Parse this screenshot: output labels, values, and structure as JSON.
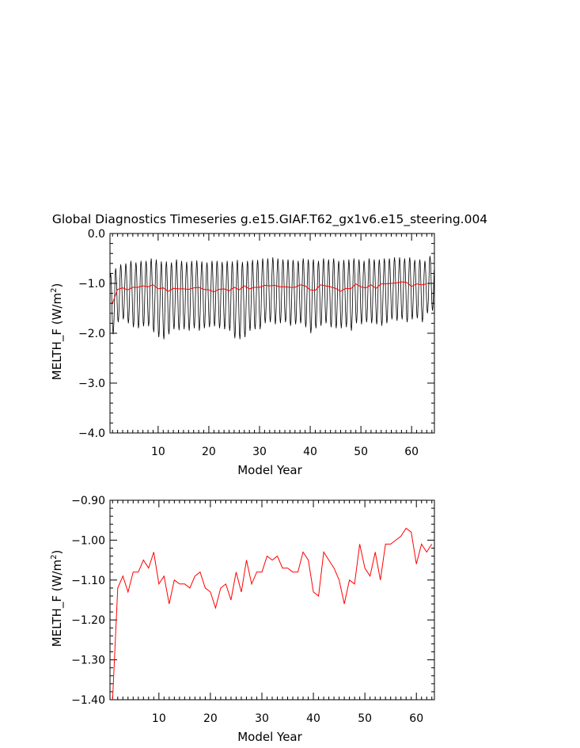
{
  "title": "Global Diagnostics Timeseries g.e15.GIAF.T62_gx1v6.e15_steering.004",
  "colors": {
    "monthly": "#000000",
    "annual": "#ff0000",
    "axes": "#000000"
  },
  "chart_data": [
    {
      "type": "line",
      "xlabel": "Model Year",
      "ylabel": "MELTH_F",
      "ylabel_units": "(W/m",
      "ylabel_exponent": "2",
      "ylabel_close": ")",
      "xlim": [
        0.5,
        64.5
      ],
      "ylim": [
        -4.0,
        0.0
      ],
      "xticks": [
        10,
        20,
        30,
        40,
        50,
        60
      ],
      "xtick_labels": [
        "10",
        "20",
        "30",
        "40",
        "50",
        "60"
      ],
      "yticks": [
        -4.0,
        -3.0,
        -2.0,
        -1.0,
        0.0
      ],
      "ytick_labels": [
        "−4.0",
        "−3.0",
        "−2.0",
        "−1.0",
        "0.0"
      ],
      "monthly_model": {
        "months_per_year": 12,
        "peak_month_index": 1,
        "trough_month_index": 7,
        "years": 64
      },
      "monthly_high": [
        -0.8,
        -0.7,
        -0.62,
        -0.6,
        -0.55,
        -0.58,
        -0.55,
        -0.55,
        -0.5,
        -0.52,
        -0.56,
        -0.56,
        -0.58,
        -0.52,
        -0.55,
        -0.57,
        -0.55,
        -0.54,
        -0.56,
        -0.58,
        -0.55,
        -0.55,
        -0.57,
        -0.55,
        -0.56,
        -0.53,
        -0.57,
        -0.55,
        -0.53,
        -0.53,
        -0.5,
        -0.5,
        -0.48,
        -0.5,
        -0.52,
        -0.52,
        -0.53,
        -0.55,
        -0.5,
        -0.52,
        -0.52,
        -0.55,
        -0.5,
        -0.52,
        -0.5,
        -0.55,
        -0.53,
        -0.52,
        -0.5,
        -0.52,
        -0.55,
        -0.5,
        -0.52,
        -0.52,
        -0.5,
        -0.5,
        -0.48,
        -0.48,
        -0.5,
        -0.48,
        -0.53,
        -0.52,
        -0.55,
        -0.45
      ],
      "monthly_low": [
        -2.02,
        -1.78,
        -1.72,
        -1.8,
        -1.88,
        -1.9,
        -1.86,
        -1.86,
        -1.98,
        -2.08,
        -2.12,
        -2.02,
        -1.92,
        -1.94,
        -1.92,
        -1.95,
        -1.9,
        -1.95,
        -1.9,
        -1.88,
        -1.86,
        -1.9,
        -1.92,
        -1.95,
        -2.1,
        -2.12,
        -2.08,
        -1.95,
        -1.92,
        -1.92,
        -1.8,
        -1.78,
        -1.82,
        -1.8,
        -1.78,
        -1.85,
        -1.82,
        -1.8,
        -1.88,
        -2.0,
        -1.9,
        -1.85,
        -1.8,
        -1.88,
        -1.9,
        -1.9,
        -1.88,
        -1.95,
        -1.8,
        -1.82,
        -1.78,
        -1.8,
        -1.82,
        -1.85,
        -1.8,
        -1.72,
        -1.75,
        -1.72,
        -1.78,
        -1.72,
        -1.7,
        -1.78,
        -1.6,
        -1.55
      ],
      "series": [
        {
          "values": [
            -1.4,
            -1.12,
            -1.09,
            -1.13,
            -1.08,
            -1.08,
            -1.05,
            -1.07,
            -1.03,
            -1.11,
            -1.09,
            -1.16,
            -1.1,
            -1.11,
            -1.11,
            -1.12,
            -1.09,
            -1.08,
            -1.12,
            -1.13,
            -1.17,
            -1.12,
            -1.11,
            -1.15,
            -1.08,
            -1.13,
            -1.05,
            -1.11,
            -1.08,
            -1.08,
            -1.04,
            -1.05,
            -1.04,
            -1.07,
            -1.07,
            -1.08,
            -1.08,
            -1.03,
            -1.05,
            -1.13,
            -1.14,
            -1.03,
            -1.05,
            -1.07,
            -1.1,
            -1.16,
            -1.1,
            -1.11,
            -1.01,
            -1.07,
            -1.09,
            -1.03,
            -1.1,
            -1.01,
            -1.01,
            -1.0,
            -0.99,
            -0.97,
            -0.98,
            -1.06,
            -1.01,
            -1.03,
            -1.01
          ]
        }
      ]
    },
    {
      "type": "line",
      "xlabel": "Model Year",
      "ylabel": "MELTH_F",
      "ylabel_units": "(W/m",
      "ylabel_exponent": "2",
      "ylabel_close": ")",
      "xlim": [
        0.5,
        63.5
      ],
      "ylim": [
        -1.4,
        -0.9
      ],
      "xticks": [
        10,
        20,
        30,
        40,
        50,
        60
      ],
      "xtick_labels": [
        "10",
        "20",
        "30",
        "40",
        "50",
        "60"
      ],
      "yticks": [
        -1.4,
        -1.3,
        -1.2,
        -1.1,
        -1.0,
        -0.9
      ],
      "ytick_labels": [
        "−1.40",
        "−1.30",
        "−1.20",
        "−1.10",
        "−1.00",
        "−0.90"
      ],
      "series": [
        {
          "values": [
            -1.4,
            -1.12,
            -1.09,
            -1.13,
            -1.08,
            -1.08,
            -1.05,
            -1.07,
            -1.03,
            -1.11,
            -1.09,
            -1.16,
            -1.1,
            -1.11,
            -1.11,
            -1.12,
            -1.09,
            -1.08,
            -1.12,
            -1.13,
            -1.17,
            -1.12,
            -1.11,
            -1.15,
            -1.08,
            -1.13,
            -1.05,
            -1.11,
            -1.08,
            -1.08,
            -1.04,
            -1.05,
            -1.04,
            -1.07,
            -1.07,
            -1.08,
            -1.08,
            -1.03,
            -1.05,
            -1.13,
            -1.14,
            -1.03,
            -1.05,
            -1.07,
            -1.1,
            -1.16,
            -1.1,
            -1.11,
            -1.01,
            -1.07,
            -1.09,
            -1.03,
            -1.1,
            -1.01,
            -1.01,
            -1.0,
            -0.99,
            -0.97,
            -0.98,
            -1.06,
            -1.01,
            -1.03,
            -1.01
          ]
        }
      ]
    }
  ]
}
